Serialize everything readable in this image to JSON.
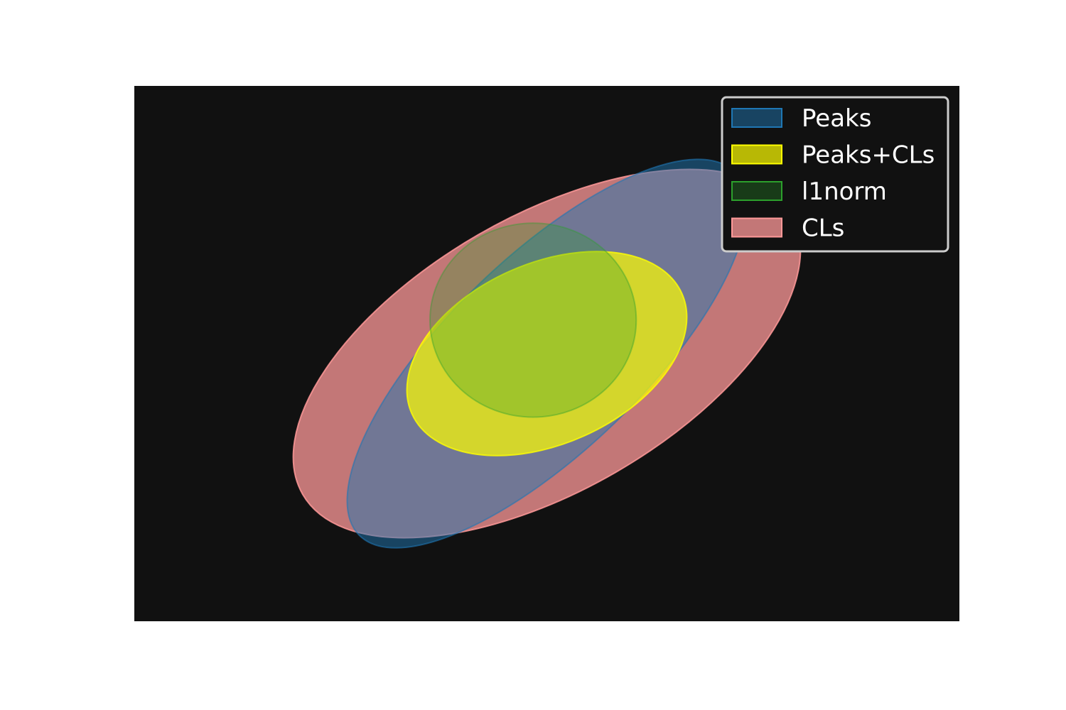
{
  "chart_data": {
    "type": "ellipse-contours",
    "title": "",
    "xlabel": "",
    "ylabel": "",
    "grid": false,
    "axes_visible": false,
    "background": "#111111",
    "legend_placement": "top-right",
    "series": [
      {
        "name": "CLs",
        "color": "#ff9999",
        "alpha": 0.75,
        "cx": 0.0,
        "cy": 0.0,
        "width": 8.2,
        "height": 4.1,
        "angle": -30
      },
      {
        "name": "Peaks",
        "color": "#1f77b4",
        "alpha": 0.5,
        "cx": 0.0,
        "cy": 0.0,
        "width": 7.6,
        "height": 2.9,
        "angle": -44
      },
      {
        "name": "Peaks+CLs",
        "color": "#ffff00",
        "alpha": 0.7,
        "cx": 0.0,
        "cy": 0.0,
        "width": 4.3,
        "height": 2.7,
        "angle": -24
      },
      {
        "name": "l1norm",
        "color": "#2ca02c",
        "alpha": 0.3,
        "cx": -0.2,
        "cy": 0.5,
        "width": 3.0,
        "height": 2.9,
        "angle": 0
      }
    ],
    "legend_order": [
      "Peaks",
      "Peaks+CLs",
      "l1norm",
      "CLs"
    ],
    "xlim": [
      -6,
      6
    ],
    "ylim": [
      -4,
      4
    ]
  }
}
